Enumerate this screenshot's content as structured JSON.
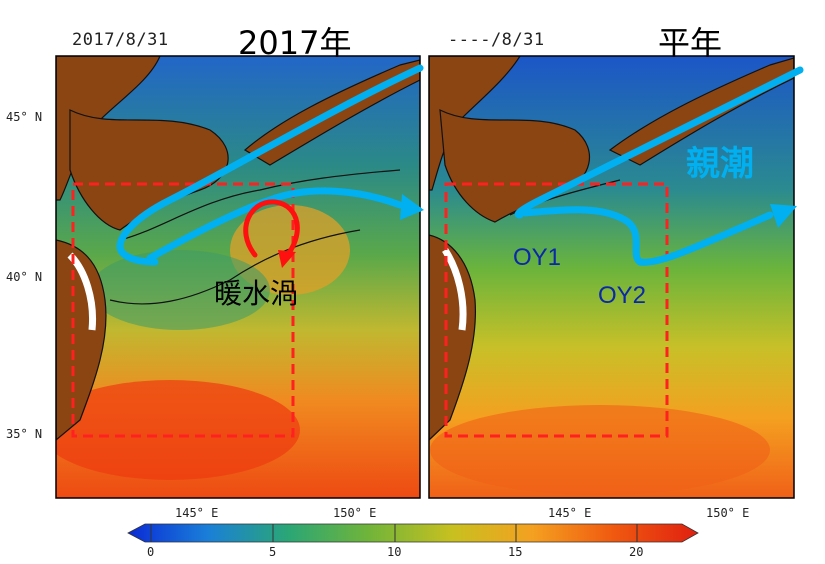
{
  "left_panel": {
    "date": "2017/8/31",
    "title": "2017年",
    "annotation": "暖水渦"
  },
  "right_panel": {
    "date": "----/8/31",
    "title": "平年",
    "current_label": "親潮",
    "point_labels": [
      "OY1",
      "OY2"
    ]
  },
  "lat_ticks": [
    "45° N",
    "40° N",
    "35° N"
  ],
  "lon_ticks": [
    "145° E",
    "150° E"
  ],
  "colorbar": {
    "ticks": [
      "0",
      "5",
      "10",
      "15",
      "20"
    ],
    "colors": [
      "#0a2ad6",
      "#1a7fd8",
      "#2aa676",
      "#6fb43a",
      "#c8c020",
      "#f4a020",
      "#f05a10",
      "#e02010"
    ]
  },
  "colors": {
    "current_arrow": "#00b0f0",
    "eddy_arrow": "#ff1010",
    "box": "#ff2020",
    "label_blue": "#0a28a8",
    "land": "#8b4513"
  }
}
